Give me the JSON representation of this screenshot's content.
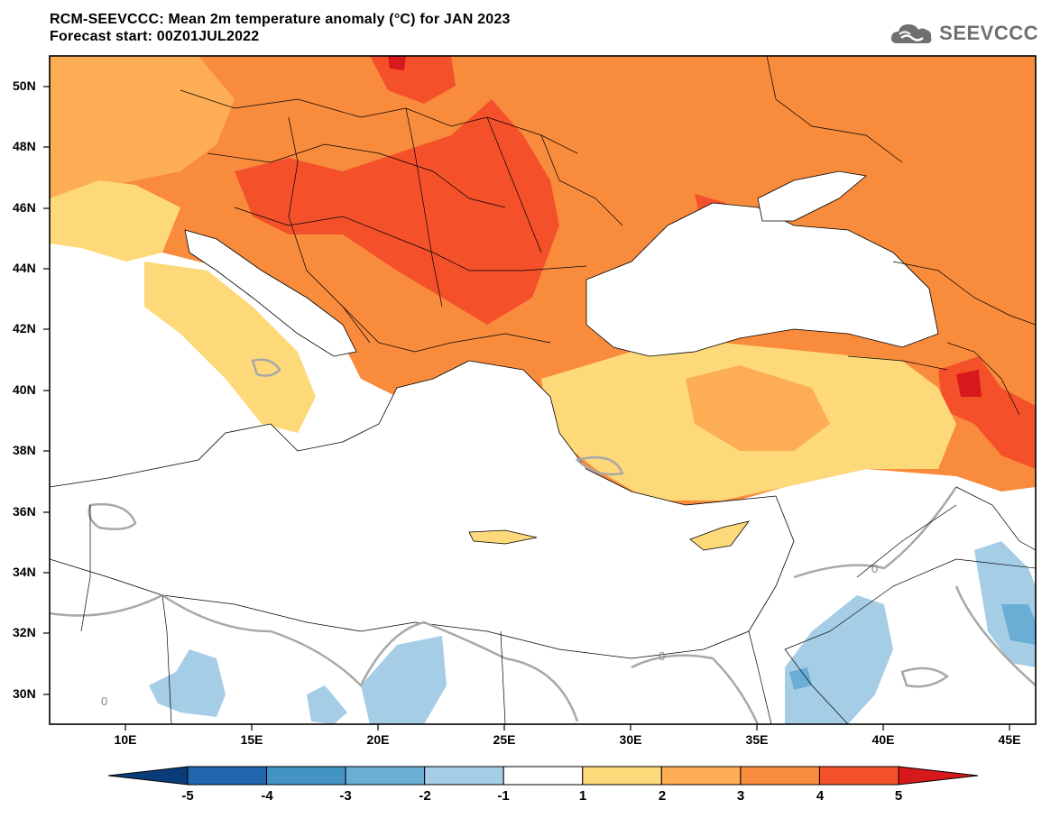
{
  "header": {
    "title_line1": "RCM-SEEVCCC: Mean 2m temperature anomaly (°C) for JAN 2023",
    "title_line2": "Forecast start: 00Z01JUL2022",
    "logo_text": "SEEVCCC",
    "logo_icon": "cloud-icon"
  },
  "map": {
    "lat_labels": [
      "50N",
      "48N",
      "46N",
      "44N",
      "42N",
      "40N",
      "38N",
      "36N",
      "34N",
      "32N",
      "30N"
    ],
    "lon_labels": [
      "10E",
      "15E",
      "20E",
      "25E",
      "30E",
      "35E",
      "40E",
      "45E"
    ],
    "contour_label": "0"
  },
  "colorbar": {
    "labels": [
      "-5",
      "-4",
      "-3",
      "-2",
      "-1",
      "1",
      "2",
      "3",
      "4",
      "5"
    ],
    "colors": [
      "#0b3c7a",
      "#2166ac",
      "#4393c3",
      "#6aaed6",
      "#a6cde6",
      "#ffffff",
      "#fdd97a",
      "#fdae55",
      "#f98b3c",
      "#f4512b",
      "#d7191c"
    ]
  }
}
